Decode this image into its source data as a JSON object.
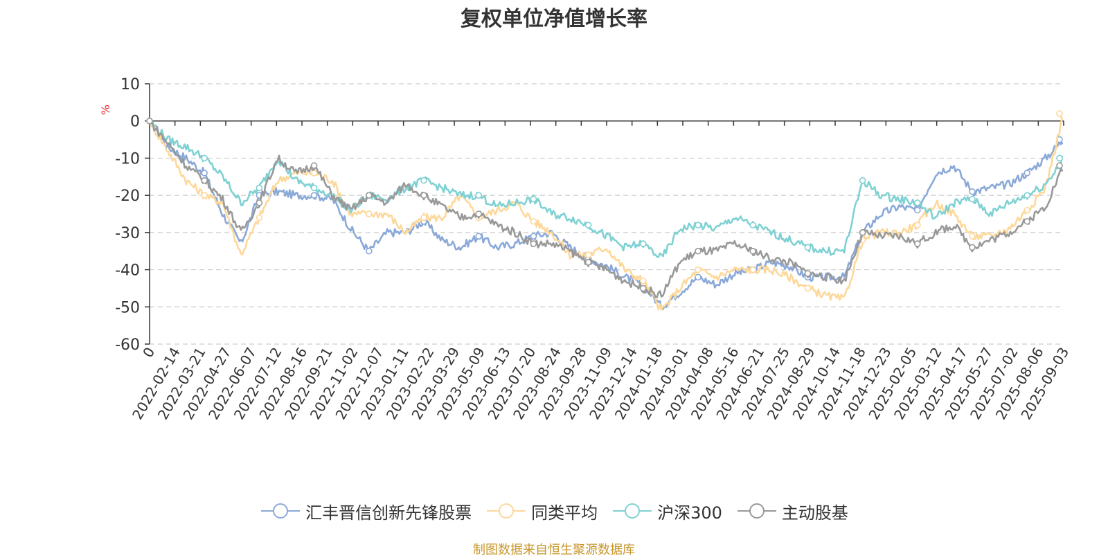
{
  "chart_data": {
    "type": "line",
    "title": "复权单位净值增长率",
    "ylabel": "%",
    "ylim": [
      -60,
      10
    ],
    "yticks": [
      10,
      0,
      -10,
      -20,
      -30,
      -40,
      -50,
      -60
    ],
    "x_tick_labels": [
      "0",
      "2022-02-14",
      "2022-03-21",
      "2022-04-27",
      "2022-06-07",
      "2022-07-12",
      "2022-08-16",
      "2022-09-21",
      "2022-11-02",
      "2022-12-07",
      "2023-01-11",
      "2023-02-22",
      "2023-03-29",
      "2023-05-09",
      "2023-06-13",
      "2023-07-20",
      "2023-08-24",
      "2023-09-28",
      "2023-11-09",
      "2023-12-14",
      "2024-01-18",
      "2024-03-01",
      "2024-04-08",
      "2024-05-16",
      "2024-06-21",
      "2024-07-25",
      "2024-08-29",
      "2024-10-14",
      "2024-11-18",
      "2024-12-23",
      "2025-02-05",
      "2025-03-12",
      "2025-04-17",
      "2025-05-27",
      "2025-07-02",
      "2025-08-06",
      "2025-09-03"
    ],
    "grid": true,
    "legend_position": "bottom",
    "series": [
      {
        "name": "汇丰晋信创新先锋股票",
        "color": "#8aa9d8",
        "values": [
          0,
          -7,
          -10,
          -14,
          -25,
          -33,
          -20,
          -19,
          -20,
          -20,
          -21,
          -29,
          -35,
          -30,
          -30,
          -27,
          -32,
          -34,
          -31,
          -34,
          -33,
          -31,
          -30,
          -34,
          -37,
          -39,
          -42,
          -44,
          -50,
          -46,
          -42,
          -44,
          -41,
          -40,
          -38,
          -39,
          -42,
          -42,
          -42,
          -30,
          -25,
          -23,
          -24,
          -14,
          -12,
          -19,
          -18,
          -17,
          -14,
          -10,
          -5
        ]
      },
      {
        "name": "同类平均",
        "color": "#fdd89a",
        "values": [
          0,
          -8,
          -16,
          -20,
          -22,
          -36,
          -26,
          -16,
          -14,
          -14,
          -16,
          -25,
          -25,
          -25,
          -30,
          -26,
          -26,
          -20,
          -26,
          -24,
          -22,
          -27,
          -30,
          -36,
          -36,
          -34,
          -40,
          -43,
          -51,
          -45,
          -40,
          -42,
          -40,
          -40,
          -40,
          -42,
          -45,
          -47,
          -48,
          -32,
          -30,
          -30,
          -28,
          -22,
          -25,
          -31,
          -31,
          -29,
          -24,
          -18,
          2
        ]
      },
      {
        "name": "沪深300",
        "color": "#7fd1d3",
        "values": [
          0,
          -5,
          -7,
          -10,
          -15,
          -22,
          -18,
          -10,
          -16,
          -18,
          -20,
          -24,
          -20,
          -21,
          -18,
          -16,
          -18,
          -20,
          -20,
          -23,
          -22,
          -21,
          -25,
          -26,
          -28,
          -31,
          -34,
          -33,
          -37,
          -29,
          -28,
          -29,
          -26,
          -28,
          -30,
          -32,
          -34,
          -35,
          -35,
          -16,
          -20,
          -21,
          -22,
          -26,
          -22,
          -21,
          -25,
          -22,
          -20,
          -17,
          -10
        ]
      },
      {
        "name": "主动股基",
        "color": "#999999",
        "values": [
          0,
          -6,
          -12,
          -16,
          -21,
          -30,
          -22,
          -10,
          -14,
          -12,
          -20,
          -24,
          -20,
          -22,
          -17,
          -20,
          -23,
          -26,
          -25,
          -28,
          -30,
          -33,
          -33,
          -35,
          -38,
          -40,
          -43,
          -45,
          -47,
          -38,
          -35,
          -35,
          -33,
          -35,
          -37,
          -38,
          -41,
          -42,
          -43,
          -30,
          -31,
          -31,
          -33,
          -30,
          -28,
          -34,
          -32,
          -30,
          -27,
          -23,
          -12
        ]
      }
    ]
  },
  "legend": [
    {
      "label": "汇丰晋信创新先锋股票",
      "color": "#8aa9d8"
    },
    {
      "label": "同类平均",
      "color": "#fdd89a"
    },
    {
      "label": "沪深300",
      "color": "#7fd1d3"
    },
    {
      "label": "主动股基",
      "color": "#999999"
    }
  ],
  "source": "制图数据来自恒生聚源数据库"
}
